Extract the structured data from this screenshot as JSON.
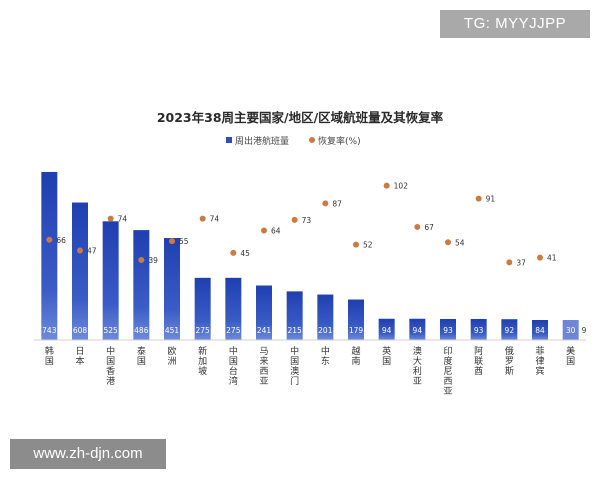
{
  "watermarks": {
    "top": "TG: MYYJJPP",
    "bottom": "www.zh-djn.com"
  },
  "chart_data": {
    "type": "bar",
    "title": "2023年38周主要国家/地区/区域航班量及其恢复率",
    "legend": [
      "周出港航班量",
      "恢复率(%)"
    ],
    "legend_position": "top-center",
    "categories": [
      "韩国",
      "日本",
      "中国香港",
      "泰国",
      "欧洲",
      "新加坡",
      "中国台湾",
      "马来西亚",
      "中国澳门",
      "中东",
      "越南",
      "英国",
      "澳大利亚",
      "印度尼西亚",
      "阿联酋",
      "俄罗斯",
      "菲律宾",
      "美国"
    ],
    "series": [
      {
        "name": "周出港航班量",
        "kind": "bar",
        "values": [
          743,
          608,
          525,
          486,
          451,
          275,
          275,
          241,
          215,
          201,
          179,
          94,
          94,
          93,
          93,
          92,
          84,
          30
        ]
      },
      {
        "name": "恢复率(%)",
        "kind": "scatter",
        "values": [
          66,
          47,
          74,
          39,
          55,
          74,
          45,
          64,
          73,
          87,
          52,
          102,
          67,
          54,
          91,
          37,
          41,
          9
        ]
      }
    ],
    "colors": {
      "bar": "#2f4fb8",
      "bar_light": "#6e86d6",
      "dot": "#cc7a42"
    },
    "xlabel": "",
    "ylabel": "",
    "ylim_bars": [
      0,
      800
    ],
    "ylim_rate": [
      0,
      130
    ],
    "grid": false
  }
}
